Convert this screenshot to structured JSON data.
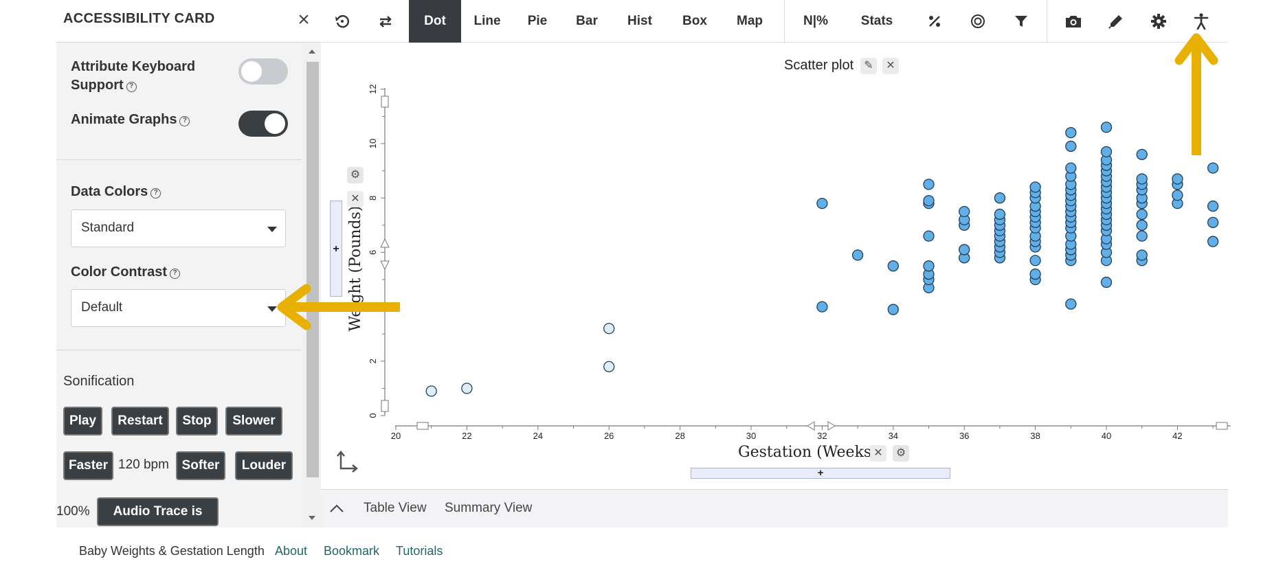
{
  "sidebar": {
    "title": "ACCESSIBILITY CARD",
    "close_icon": "×",
    "keyboard_support": {
      "label_line1": "Attribute Keyboard",
      "label_line2": "Support",
      "enabled": false
    },
    "animate_graphs": {
      "label": "Animate Graphs",
      "enabled": true
    },
    "data_colors": {
      "label": "Data Colors",
      "value": "Standard"
    },
    "color_contrast": {
      "label": "Color Contrast",
      "value": "Default"
    },
    "sonification": {
      "label": "Sonification",
      "play": "Play",
      "restart": "Restart",
      "stop": "Stop",
      "slower": "Slower",
      "faster": "Faster",
      "tempo": "120 bpm",
      "softer": "Softer",
      "louder": "Louder",
      "volume": "100%",
      "audio_trace": "Audio Trace is OFF"
    }
  },
  "toolbar": {
    "dot": "Dot",
    "line": "Line",
    "pie": "Pie",
    "bar": "Bar",
    "hist": "Hist",
    "box": "Box",
    "map": "Map",
    "npct": "N|%",
    "stats": "Stats",
    "icons": [
      "undo-icon",
      "swap-icon",
      "percent-icon",
      "target-icon",
      "filter-icon",
      "camera-icon",
      "pen-icon",
      "gear-icon",
      "accessibility-icon"
    ]
  },
  "bottom_bar": {
    "table_view": "Table View",
    "summary_view": "Summary View"
  },
  "footer": {
    "dataset": "Baby Weights & Gestation Length",
    "about": "About",
    "bookmark": "Bookmark",
    "tutorials": "Tutorials"
  },
  "colors": {
    "point_fill": "#62aee6",
    "point_fill_light": "#ddeef9",
    "point_stroke": "#1f3f5a",
    "annotation": "#e8b000",
    "toolbar_active": "#383c41"
  },
  "chart_data": {
    "type": "scatter",
    "title": "Scatter plot",
    "xlabel": "Gestation (Weeks)",
    "ylabel": "Weight (Pounds)",
    "xlim": [
      20,
      43
    ],
    "ylim": [
      0,
      12
    ],
    "xticks": [
      20,
      22,
      24,
      26,
      28,
      30,
      32,
      34,
      36,
      38,
      40,
      42
    ],
    "yticks": [
      0,
      2,
      6,
      8,
      10,
      12
    ],
    "series": [
      {
        "points": [
          [
            21,
            0.9
          ],
          [
            22,
            1.0
          ],
          [
            26,
            1.8
          ],
          [
            26,
            3.2
          ],
          [
            32,
            4.0
          ],
          [
            32,
            7.8
          ],
          [
            33,
            5.9
          ],
          [
            34,
            3.9
          ],
          [
            34,
            5.5
          ],
          [
            35,
            4.7
          ],
          [
            35,
            5.0
          ],
          [
            35,
            5.2
          ],
          [
            35,
            5.5
          ],
          [
            35,
            6.6
          ],
          [
            35,
            7.8
          ],
          [
            35,
            7.9
          ],
          [
            35,
            8.5
          ],
          [
            36,
            5.8
          ],
          [
            36,
            6.1
          ],
          [
            36,
            7.0
          ],
          [
            36,
            7.2
          ],
          [
            36,
            7.5
          ],
          [
            37,
            5.8
          ],
          [
            37,
            6.0
          ],
          [
            37,
            6.2
          ],
          [
            37,
            6.4
          ],
          [
            37,
            6.6
          ],
          [
            37,
            6.8
          ],
          [
            37,
            7.0
          ],
          [
            37,
            7.2
          ],
          [
            37,
            7.4
          ],
          [
            37,
            8.0
          ],
          [
            38,
            5.0
          ],
          [
            38,
            5.2
          ],
          [
            38,
            5.7
          ],
          [
            38,
            6.2
          ],
          [
            38,
            6.4
          ],
          [
            38,
            6.6
          ],
          [
            38,
            6.9
          ],
          [
            38,
            7.1
          ],
          [
            38,
            7.3
          ],
          [
            38,
            7.5
          ],
          [
            38,
            7.7
          ],
          [
            38,
            8.0
          ],
          [
            38,
            8.2
          ],
          [
            38,
            8.4
          ],
          [
            39,
            4.1
          ],
          [
            39,
            5.7
          ],
          [
            39,
            5.9
          ],
          [
            39,
            6.1
          ],
          [
            39,
            6.3
          ],
          [
            39,
            6.6
          ],
          [
            39,
            6.9
          ],
          [
            39,
            7.1
          ],
          [
            39,
            7.3
          ],
          [
            39,
            7.5
          ],
          [
            39,
            7.7
          ],
          [
            39,
            7.9
          ],
          [
            39,
            8.1
          ],
          [
            39,
            8.3
          ],
          [
            39,
            8.5
          ],
          [
            39,
            8.8
          ],
          [
            39,
            9.1
          ],
          [
            39,
            9.9
          ],
          [
            39,
            10.4
          ],
          [
            40,
            4.9
          ],
          [
            40,
            5.7
          ],
          [
            40,
            6.0
          ],
          [
            40,
            6.3
          ],
          [
            40,
            6.5
          ],
          [
            40,
            6.8
          ],
          [
            40,
            7.0
          ],
          [
            40,
            7.2
          ],
          [
            40,
            7.4
          ],
          [
            40,
            7.6
          ],
          [
            40,
            7.8
          ],
          [
            40,
            8.0
          ],
          [
            40,
            8.2
          ],
          [
            40,
            8.4
          ],
          [
            40,
            8.6
          ],
          [
            40,
            8.8
          ],
          [
            40,
            9.0
          ],
          [
            40,
            9.2
          ],
          [
            40,
            9.4
          ],
          [
            40,
            9.7
          ],
          [
            40,
            10.6
          ],
          [
            41,
            5.7
          ],
          [
            41,
            5.9
          ],
          [
            41,
            6.6
          ],
          [
            41,
            7.0
          ],
          [
            41,
            7.4
          ],
          [
            41,
            7.8
          ],
          [
            41,
            8.0
          ],
          [
            41,
            8.3
          ],
          [
            41,
            8.5
          ],
          [
            41,
            8.7
          ],
          [
            41,
            9.6
          ],
          [
            42,
            7.8
          ],
          [
            42,
            8.1
          ],
          [
            42,
            8.5
          ],
          [
            42,
            8.7
          ],
          [
            43,
            6.4
          ],
          [
            43,
            7.1
          ],
          [
            43,
            7.7
          ],
          [
            43,
            9.1
          ]
        ],
        "light_points": [
          [
            21,
            0.9
          ],
          [
            22,
            1.0
          ],
          [
            26,
            1.8
          ],
          [
            26,
            3.2
          ]
        ]
      }
    ],
    "legend": "none",
    "grid": false
  }
}
